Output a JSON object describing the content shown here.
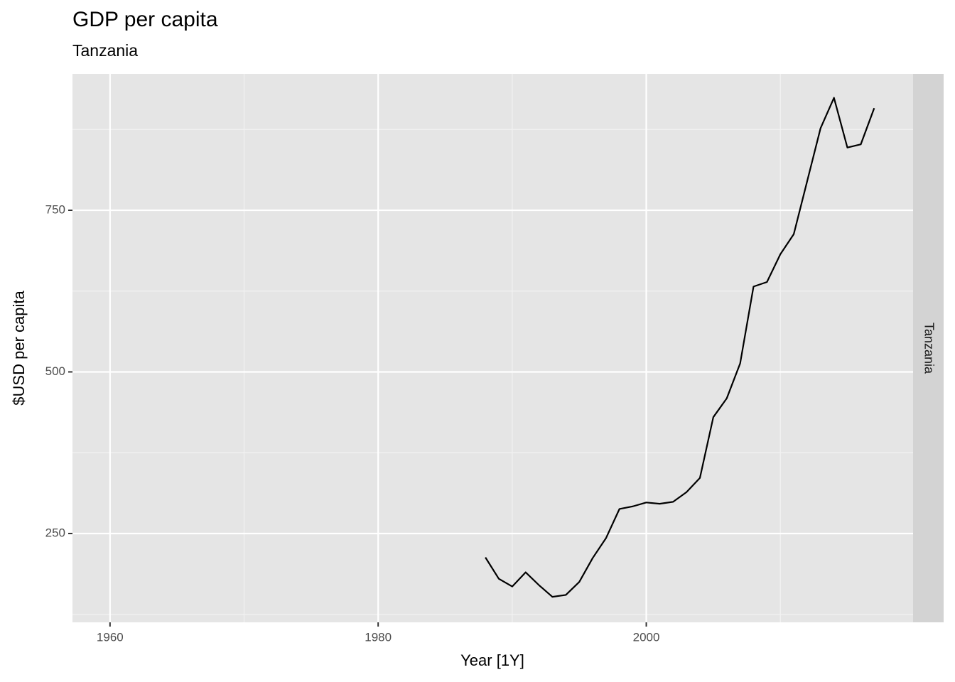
{
  "chart_data": {
    "type": "line",
    "title": "GDP per capita",
    "subtitle": "Tanzania",
    "facet": "Tanzania",
    "xlabel": "Year [1Y]",
    "ylabel": "$USD per capita",
    "x": [
      1988,
      1989,
      1990,
      1991,
      1992,
      1993,
      1994,
      1995,
      1996,
      1997,
      1998,
      1999,
      2000,
      2001,
      2002,
      2003,
      2004,
      2005,
      2006,
      2007,
      2008,
      2009,
      2010,
      2011,
      2012,
      2013,
      2014,
      2015,
      2016,
      2017
    ],
    "values": [
      213,
      180,
      168,
      190,
      170,
      152,
      155,
      175,
      212,
      243,
      288,
      292,
      298,
      296,
      299,
      314,
      336,
      430,
      459,
      513,
      632,
      639,
      682,
      713,
      795,
      877,
      924,
      847,
      852,
      908
    ],
    "color": "#000000",
    "xlim": [
      1957.2,
      2019.9
    ],
    "xticks": [
      1960,
      1980,
      2000
    ],
    "xminor": [
      1970,
      1990,
      2010
    ],
    "ylim": [
      112.6,
      961
    ],
    "yticks": [
      250,
      500,
      750
    ],
    "yminor": [
      125,
      375,
      625,
      875
    ],
    "grid": true
  }
}
